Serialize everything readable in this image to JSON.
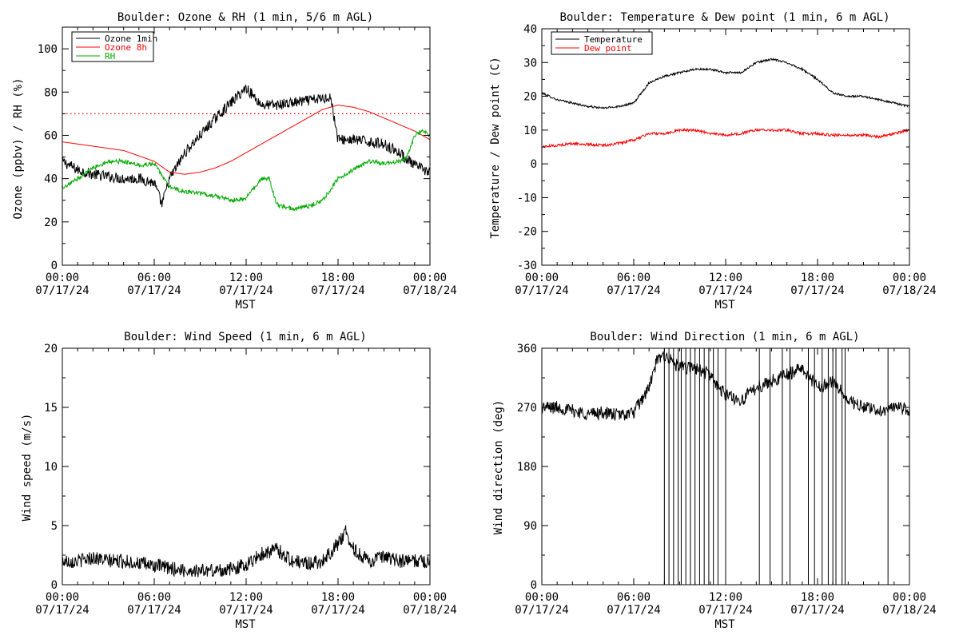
{
  "chart_data": [
    {
      "type": "line",
      "title": "Boulder: Ozone & RH (1 min, 5/6 m AGL)",
      "xlabel": "MST",
      "ylabel": "Ozone (ppbv) / RH (%)",
      "xlim": [
        "07/17/24 00:00",
        "07/18/24 00:00"
      ],
      "ylim": [
        0,
        110
      ],
      "yticks": [
        0,
        20,
        40,
        60,
        80,
        100
      ],
      "xtick_labels": [
        [
          "00:00",
          "07/17/24"
        ],
        [
          "06:00",
          "07/17/24"
        ],
        [
          "12:00",
          "07/17/24"
        ],
        [
          "18:00",
          "07/17/24"
        ],
        [
          "00:00",
          "07/18/24"
        ]
      ],
      "legend_position": "top-left",
      "reference_line": {
        "y": 70,
        "style": "dotted",
        "color": "#ff0000"
      },
      "series": [
        {
          "name": "Ozone 1min",
          "color": "#000000",
          "noise": 2.5,
          "x": [
            0,
            1,
            2,
            3,
            4,
            5,
            6,
            6.5,
            7,
            8,
            9,
            10,
            11,
            12,
            12.5,
            13,
            14,
            15,
            16,
            17,
            17.5,
            18,
            19,
            20,
            21,
            22,
            23,
            24
          ],
          "y": [
            48,
            44,
            42,
            41,
            40,
            40,
            38,
            28,
            40,
            52,
            60,
            68,
            75,
            82,
            78,
            74,
            74,
            75,
            76,
            77,
            78,
            58,
            58,
            57,
            56,
            52,
            46,
            43
          ]
        },
        {
          "name": "Ozone 8h",
          "color": "#ff0000",
          "noise": 0,
          "x": [
            0,
            2,
            4,
            6,
            7,
            8,
            9,
            10,
            11,
            12,
            13,
            14,
            15,
            16,
            17,
            18,
            19,
            20,
            21,
            22,
            23,
            24
          ],
          "y": [
            57,
            55,
            53,
            48,
            43,
            42,
            43,
            45,
            48,
            52,
            56,
            60,
            64,
            68,
            72,
            74,
            73,
            71,
            68,
            65,
            62,
            58
          ]
        },
        {
          "name": "RH",
          "color": "#00aa00",
          "noise": 1,
          "x": [
            0,
            1,
            2,
            3,
            4,
            5,
            6,
            7,
            8,
            9,
            10,
            11,
            12,
            13,
            13.5,
            14,
            15,
            16,
            17,
            18,
            19,
            20,
            21,
            22,
            22.5,
            23,
            23.5,
            24
          ],
          "y": [
            35,
            40,
            45,
            48,
            48,
            46,
            47,
            36,
            34,
            33,
            32,
            30,
            31,
            40,
            40,
            28,
            26,
            27,
            30,
            40,
            44,
            48,
            47,
            48,
            50,
            60,
            62,
            60
          ]
        }
      ]
    },
    {
      "type": "line",
      "title": "Boulder: Temperature & Dew point (1 min, 6 m AGL)",
      "xlabel": "MST",
      "ylabel": "Temperature / Dew point (C)",
      "xlim": [
        "07/17/24 00:00",
        "07/18/24 00:00"
      ],
      "ylim": [
        -30,
        40
      ],
      "yticks": [
        -30,
        -20,
        -10,
        0,
        10,
        20,
        30,
        40
      ],
      "xtick_labels": [
        [
          "00:00",
          "07/17/24"
        ],
        [
          "06:00",
          "07/17/24"
        ],
        [
          "12:00",
          "07/17/24"
        ],
        [
          "18:00",
          "07/17/24"
        ],
        [
          "00:00",
          "07/18/24"
        ]
      ],
      "legend_position": "top-left",
      "series": [
        {
          "name": "Temperature",
          "color": "#000000",
          "noise": 0.3,
          "x": [
            0,
            1,
            2,
            3,
            4,
            5,
            6,
            7,
            8,
            9,
            10,
            11,
            12,
            13,
            14,
            15,
            16,
            17,
            18,
            19,
            20,
            21,
            22,
            23,
            24
          ],
          "y": [
            21,
            19,
            18,
            17,
            16.5,
            17,
            18,
            24,
            26,
            27,
            28,
            28,
            27,
            27,
            30,
            31,
            30,
            28,
            25,
            21,
            20,
            20,
            19,
            18,
            17
          ]
        },
        {
          "name": "Dew point",
          "color": "#ff0000",
          "noise": 0.4,
          "x": [
            0,
            2,
            4,
            5,
            6,
            7,
            8,
            9,
            10,
            11,
            12,
            13,
            14,
            15,
            16,
            17,
            18,
            19,
            20,
            21,
            22,
            23,
            24
          ],
          "y": [
            5,
            6,
            5.5,
            6,
            7,
            9,
            9,
            10,
            10,
            9,
            8.5,
            9,
            10,
            10,
            10,
            9,
            9,
            8.5,
            8.5,
            8.5,
            8,
            9,
            10
          ]
        }
      ]
    },
    {
      "type": "line",
      "title": "Boulder: Wind Speed (1 min, 6 m AGL)",
      "xlabel": "MST",
      "ylabel": "Wind speed (m/s)",
      "xlim": [
        "07/17/24 00:00",
        "07/18/24 00:00"
      ],
      "ylim": [
        0,
        20
      ],
      "yticks": [
        0,
        5,
        10,
        15,
        20
      ],
      "xtick_labels": [
        [
          "00:00",
          "07/17/24"
        ],
        [
          "06:00",
          "07/17/24"
        ],
        [
          "12:00",
          "07/17/24"
        ],
        [
          "18:00",
          "07/17/24"
        ],
        [
          "00:00",
          "07/18/24"
        ]
      ],
      "series": [
        {
          "name": "",
          "color": "#000000",
          "noise": 0.6,
          "x": [
            0,
            1,
            2,
            3,
            4,
            5,
            6,
            7,
            8,
            9,
            10,
            11,
            12,
            13,
            14,
            15,
            16,
            17,
            18,
            18.5,
            19,
            20,
            21,
            22,
            23,
            24
          ],
          "y": [
            2,
            2,
            2.3,
            2,
            2,
            1.8,
            1.6,
            1.4,
            1.2,
            1.2,
            1.2,
            1.3,
            1.7,
            2.6,
            3,
            2,
            1.8,
            2,
            3.5,
            4.5,
            3,
            2,
            2.3,
            2,
            2,
            2
          ]
        }
      ]
    },
    {
      "type": "line",
      "title": "Boulder: Wind Direction (1 min, 6 m AGL)",
      "xlabel": "MST",
      "ylabel": "Wind direction (deg)",
      "xlim": [
        "07/17/24 00:00",
        "07/18/24 00:00"
      ],
      "ylim": [
        0,
        360
      ],
      "yticks": [
        0,
        90,
        180,
        270,
        360
      ],
      "xtick_labels": [
        [
          "00:00",
          "07/17/24"
        ],
        [
          "06:00",
          "07/17/24"
        ],
        [
          "12:00",
          "07/17/24"
        ],
        [
          "18:00",
          "07/17/24"
        ],
        [
          "00:00",
          "07/18/24"
        ]
      ],
      "series": [
        {
          "name": "",
          "color": "#000000",
          "noise": 10,
          "x": [
            0,
            1,
            2,
            3,
            4,
            5,
            6,
            7,
            7.5,
            8,
            9,
            10,
            11,
            11.5,
            12,
            13,
            14,
            15,
            16,
            17,
            18,
            19,
            20,
            21,
            22,
            23,
            24
          ],
          "y": [
            270,
            270,
            265,
            260,
            262,
            258,
            262,
            300,
            340,
            350,
            330,
            330,
            320,
            300,
            290,
            280,
            300,
            310,
            320,
            330,
            300,
            310,
            280,
            270,
            265,
            270,
            265
          ]
        }
      ],
      "wrap_spikes_hours": [
        8.0,
        8.3,
        8.6,
        8.9,
        9.1,
        9.4,
        9.7,
        10.0,
        10.3,
        10.6,
        10.9,
        11.2,
        11.5,
        12.0,
        14.2,
        14.9,
        15.7,
        16.2,
        17.4,
        17.8,
        18.3,
        18.7,
        19.0,
        19.2,
        19.6,
        19.8,
        22.6
      ]
    }
  ]
}
